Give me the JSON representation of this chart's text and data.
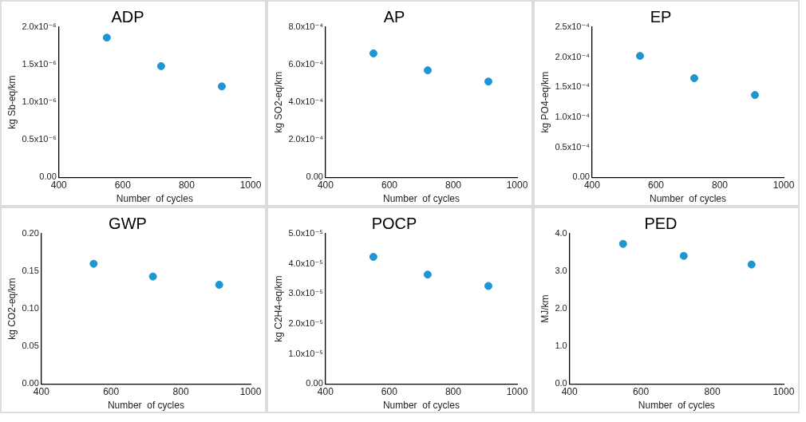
{
  "chart_data": [
    {
      "type": "scatter",
      "title": "ADP",
      "xlabel": "Number  of cycles",
      "ylabel": "kg Sb-eq/km",
      "x": [
        550,
        720,
        910
      ],
      "series": [
        {
          "color": "#1f96d4",
          "values": [
            1.86e-06,
            1.48e-06,
            1.21e-06
          ]
        }
      ],
      "xlim": [
        400,
        1000
      ],
      "xticks": [
        400,
        600,
        800,
        1000
      ],
      "ylim": [
        0,
        2e-06
      ],
      "yticks": [
        {
          "value": 0,
          "label": "0.00"
        },
        {
          "value": 5e-07,
          "label": "0.5x10⁻⁶"
        },
        {
          "value": 1e-06,
          "label": "1.0x10⁻⁶"
        },
        {
          "value": 1.5e-06,
          "label": "1.5x10⁻⁶"
        },
        {
          "value": 2e-06,
          "label": "2.0x10⁻⁶"
        }
      ],
      "grid": false,
      "marker": "circle"
    },
    {
      "type": "scatter",
      "title": "AP",
      "xlabel": "Number  of cycles",
      "ylabel": "kg SO2-eq/km",
      "x": [
        550,
        720,
        910
      ],
      "series": [
        {
          "color": "#1f96d4",
          "values": [
            0.00066,
            0.00057,
            0.00051
          ]
        }
      ],
      "xlim": [
        400,
        1000
      ],
      "xticks": [
        400,
        600,
        800,
        1000
      ],
      "ylim": [
        0,
        0.0008
      ],
      "yticks": [
        {
          "value": 0,
          "label": "0.00"
        },
        {
          "value": 0.0002,
          "label": "2.0x10⁻⁴"
        },
        {
          "value": 0.0004,
          "label": "4.0x10⁻⁴"
        },
        {
          "value": 0.0006,
          "label": "6.0x10⁻⁴"
        },
        {
          "value": 0.0008,
          "label": "8.0x10⁻⁴"
        }
      ],
      "grid": false,
      "marker": "circle"
    },
    {
      "type": "scatter",
      "title": "EP",
      "xlabel": "Number  of cycles",
      "ylabel": "kg PO4-eq/km",
      "x": [
        550,
        720,
        910
      ],
      "series": [
        {
          "color": "#1f96d4",
          "values": [
            0.000202,
            0.000165,
            0.000137
          ]
        }
      ],
      "xlim": [
        400,
        1000
      ],
      "xticks": [
        400,
        600,
        800,
        1000
      ],
      "ylim": [
        0,
        0.00025
      ],
      "yticks": [
        {
          "value": 0,
          "label": "0.00"
        },
        {
          "value": 5e-05,
          "label": "0.5x10⁻⁴"
        },
        {
          "value": 0.0001,
          "label": "1.0x10⁻⁴"
        },
        {
          "value": 0.00015,
          "label": "1.5x10⁻⁴"
        },
        {
          "value": 0.0002,
          "label": "2.0x10⁻⁴"
        },
        {
          "value": 0.00025,
          "label": "2.5x10⁻⁴"
        }
      ],
      "grid": false,
      "marker": "circle"
    },
    {
      "type": "scatter",
      "title": "GWP",
      "xlabel": "Number  of cycles",
      "ylabel": "kg CO2-eq/km",
      "x": [
        550,
        720,
        910
      ],
      "series": [
        {
          "color": "#1f96d4",
          "values": [
            0.16,
            0.143,
            0.132
          ]
        }
      ],
      "xlim": [
        400,
        1000
      ],
      "xticks": [
        400,
        600,
        800,
        1000
      ],
      "ylim": [
        0,
        0.2
      ],
      "yticks": [
        {
          "value": 0,
          "label": "0.00"
        },
        {
          "value": 0.05,
          "label": "0.05"
        },
        {
          "value": 0.1,
          "label": "0.10"
        },
        {
          "value": 0.15,
          "label": "0.15"
        },
        {
          "value": 0.2,
          "label": "0.20"
        }
      ],
      "grid": false,
      "marker": "circle"
    },
    {
      "type": "scatter",
      "title": "POCP",
      "xlabel": "Number  of cycles",
      "ylabel": "kg C2H4-eq/km",
      "x": [
        550,
        720,
        910
      ],
      "series": [
        {
          "color": "#1f96d4",
          "values": [
            4.23e-05,
            3.64e-05,
            3.26e-05
          ]
        }
      ],
      "xlim": [
        400,
        1000
      ],
      "xticks": [
        400,
        600,
        800,
        1000
      ],
      "ylim": [
        0,
        5e-05
      ],
      "yticks": [
        {
          "value": 0,
          "label": "0.00"
        },
        {
          "value": 1e-05,
          "label": "1.0x10⁻⁵"
        },
        {
          "value": 2e-05,
          "label": "2.0x10⁻⁵"
        },
        {
          "value": 3e-05,
          "label": "3.0x10⁻⁵"
        },
        {
          "value": 4e-05,
          "label": "4.0x10⁻⁵"
        },
        {
          "value": 5e-05,
          "label": "5.0x10⁻⁵"
        }
      ],
      "grid": false,
      "marker": "circle"
    },
    {
      "type": "scatter",
      "title": "PED",
      "xlabel": "Number  of cycles",
      "ylabel": "MJ/km",
      "x": [
        550,
        720,
        910
      ],
      "series": [
        {
          "color": "#1f96d4",
          "values": [
            3.73,
            3.41,
            3.18
          ]
        }
      ],
      "xlim": [
        400,
        1000
      ],
      "xticks": [
        400,
        600,
        800,
        1000
      ],
      "ylim": [
        0,
        4.0
      ],
      "yticks": [
        {
          "value": 0,
          "label": "0.0"
        },
        {
          "value": 1,
          "label": "1.0"
        },
        {
          "value": 2,
          "label": "2.0"
        },
        {
          "value": 3,
          "label": "3.0"
        },
        {
          "value": 4,
          "label": "4.0"
        }
      ],
      "grid": false,
      "marker": "circle"
    }
  ]
}
